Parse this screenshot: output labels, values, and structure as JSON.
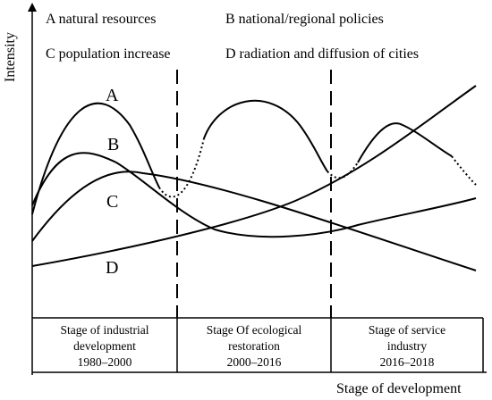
{
  "axes": {
    "y_label": "Intensity",
    "x_label": "Stage of development"
  },
  "legend": [
    {
      "key": "A",
      "text": "A natural resources"
    },
    {
      "key": "B",
      "text": "B national/regional policies"
    },
    {
      "key": "C",
      "text": "C population increase"
    },
    {
      "key": "D",
      "text": "D radiation and diffusion of cities"
    }
  ],
  "curve_labels": [
    "A",
    "B",
    "C",
    "D"
  ],
  "stages": [
    {
      "line1": "Stage of industrial",
      "line2": "development",
      "line3": "1980–2000"
    },
    {
      "line1": "Stage Of ecological",
      "line2": "restoration",
      "line3": "2000–2016"
    },
    {
      "line1": "Stage of service",
      "line2": "industry",
      "line3": "2016–2018"
    }
  ]
}
